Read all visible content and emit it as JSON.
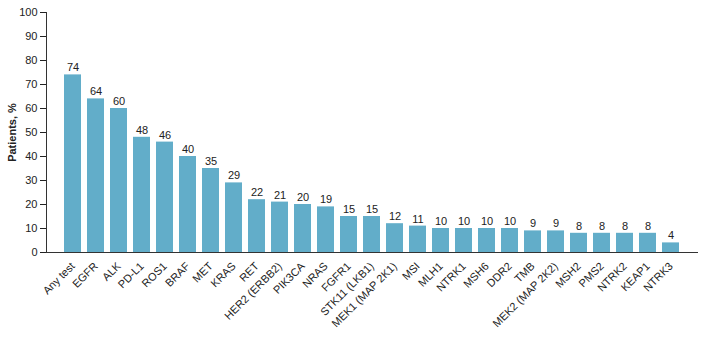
{
  "chart_data": {
    "type": "bar",
    "categories": [
      "Any test",
      "EGFR",
      "ALK",
      "PD-L1",
      "ROS1",
      "BRAF",
      "MET",
      "KRAS",
      "RET",
      "HER2 (ERBB2)",
      "PIK3CA",
      "NRAS",
      "FGFR1",
      "STK11 (LKB1)",
      "MEK1 (MAP 2K1)",
      "MSI",
      "MLH1",
      "NTRK1",
      "MSH6",
      "DDR2",
      "TMB",
      "MEK2 (MAP 2K2)",
      "MSH2",
      "PMS2",
      "NTRK2",
      "KEAP1",
      "NTRK3"
    ],
    "values": [
      74,
      64,
      60,
      48,
      46,
      40,
      35,
      29,
      22,
      21,
      20,
      19,
      15,
      15,
      12,
      11,
      10,
      10,
      10,
      10,
      9,
      9,
      8,
      8,
      8,
      8,
      4
    ],
    "y_label": "Patients, %",
    "color": "#62adc9",
    "ylim": [
      0,
      100
    ],
    "yticks": [
      0,
      10,
      20,
      30,
      40,
      50,
      60,
      70,
      80,
      90,
      100
    ],
    "grid": false,
    "data_labels": true
  }
}
